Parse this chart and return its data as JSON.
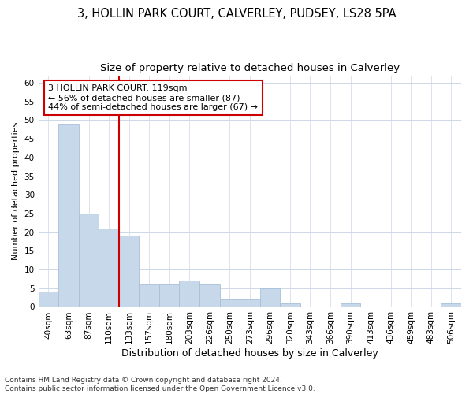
{
  "title1": "3, HOLLIN PARK COURT, CALVERLEY, PUDSEY, LS28 5PA",
  "title2": "Size of property relative to detached houses in Calverley",
  "xlabel": "Distribution of detached houses by size in Calverley",
  "ylabel": "Number of detached properties",
  "categories": [
    "40sqm",
    "63sqm",
    "87sqm",
    "110sqm",
    "133sqm",
    "157sqm",
    "180sqm",
    "203sqm",
    "226sqm",
    "250sqm",
    "273sqm",
    "296sqm",
    "320sqm",
    "343sqm",
    "366sqm",
    "390sqm",
    "413sqm",
    "436sqm",
    "459sqm",
    "483sqm",
    "506sqm"
  ],
  "values": [
    4,
    49,
    25,
    21,
    19,
    6,
    6,
    7,
    6,
    2,
    2,
    5,
    1,
    0,
    0,
    1,
    0,
    0,
    0,
    0,
    1
  ],
  "bar_color": "#c8d8eb",
  "bar_edge_color": "#a8c0d8",
  "vline_color": "#cc0000",
  "annotation_line1": "3 HOLLIN PARK COURT: 119sqm",
  "annotation_line2": "← 56% of detached houses are smaller (87)",
  "annotation_line3": "44% of semi-detached houses are larger (67) →",
  "annotation_box_color": "#ffffff",
  "annotation_box_edge": "#cc0000",
  "ylim": [
    0,
    62
  ],
  "yticks": [
    0,
    5,
    10,
    15,
    20,
    25,
    30,
    35,
    40,
    45,
    50,
    55,
    60
  ],
  "footer_line1": "Contains HM Land Registry data © Crown copyright and database right 2024.",
  "footer_line2": "Contains public sector information licensed under the Open Government Licence v3.0.",
  "bg_color": "#ffffff",
  "grid_color": "#cdd8e8",
  "title1_fontsize": 10.5,
  "title2_fontsize": 9.5,
  "xlabel_fontsize": 9,
  "ylabel_fontsize": 8,
  "tick_fontsize": 7.5,
  "annot_fontsize": 8,
  "footer_fontsize": 6.5
}
